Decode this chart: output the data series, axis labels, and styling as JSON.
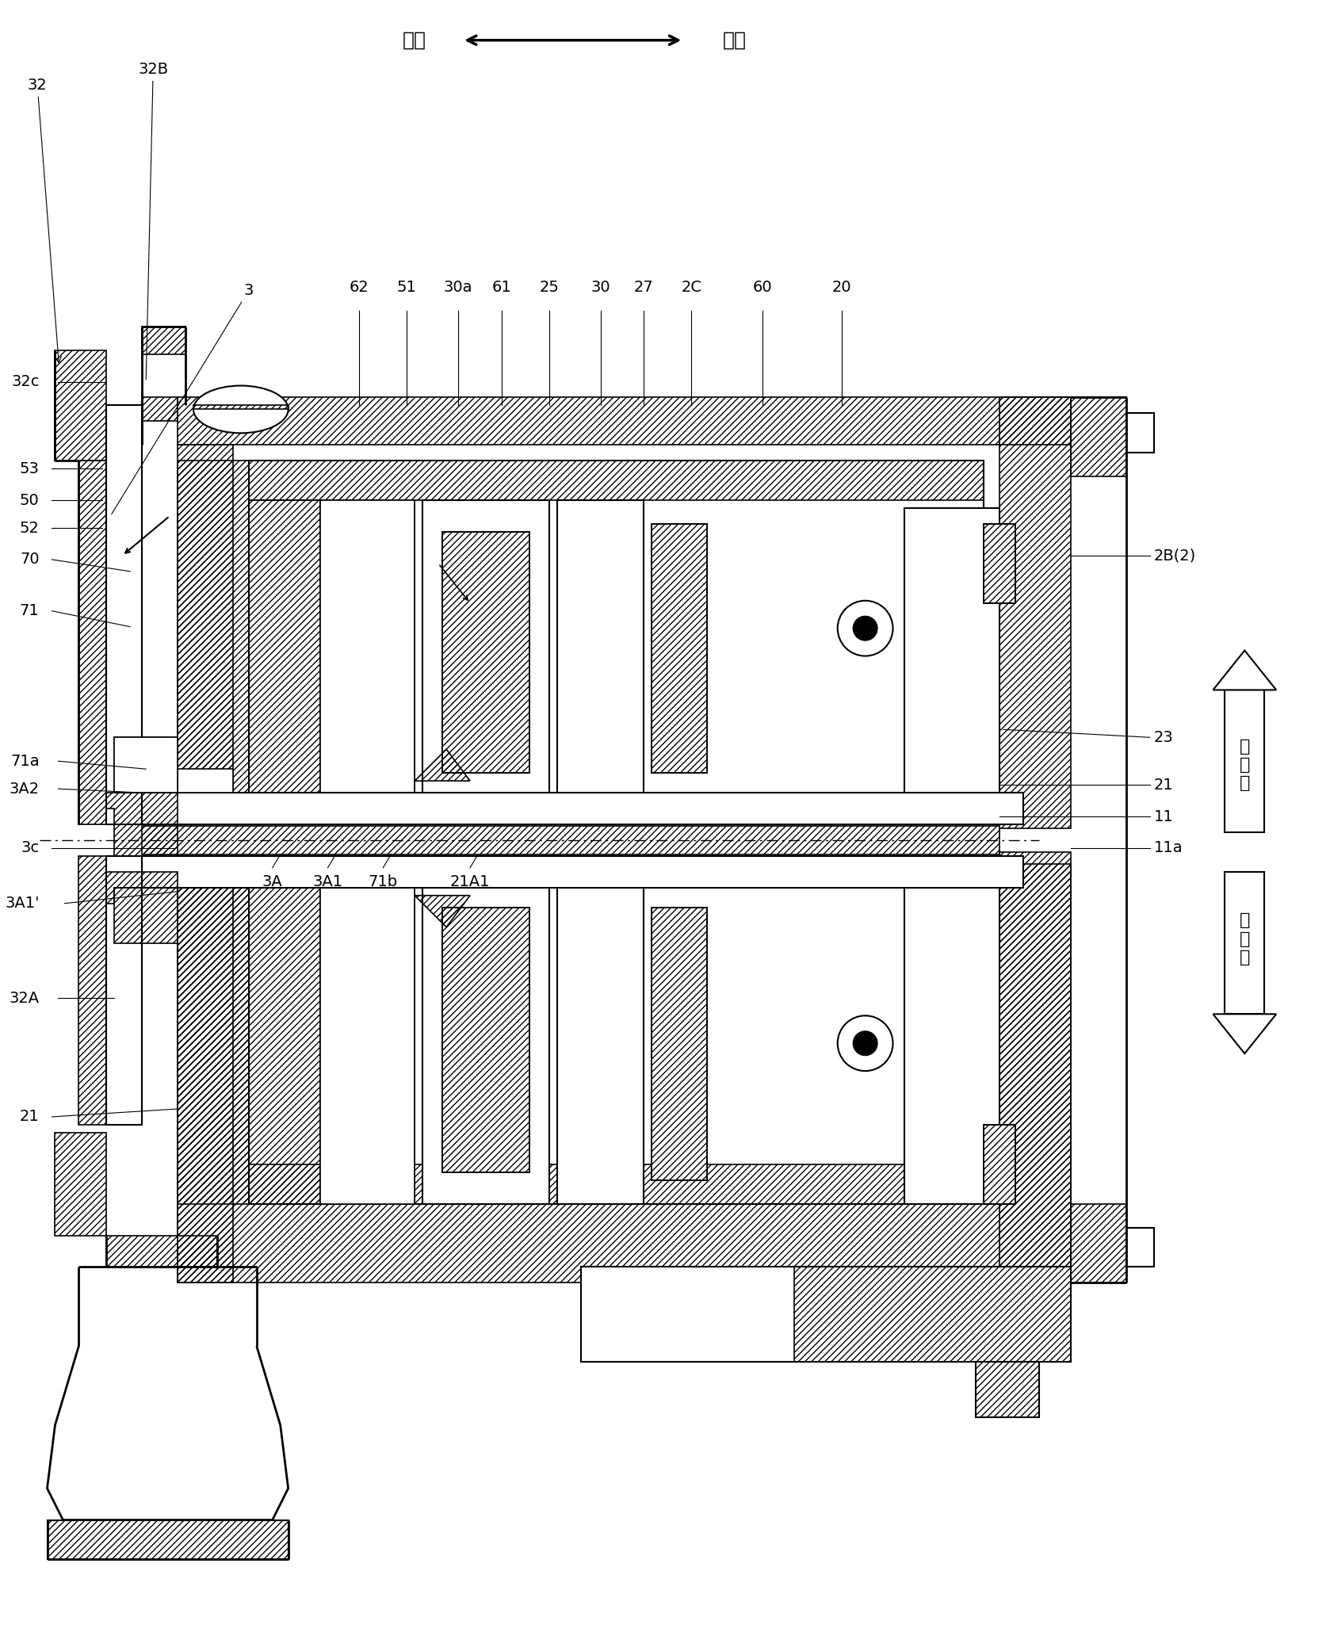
{
  "fig_width": 16.78,
  "fig_height": 20.69,
  "bg": "#ffffff",
  "top_label_left": "前方",
  "top_label_right": "后方",
  "arrow_up_text": "对\n策\n后",
  "arrow_dn_text": "对\n策\n前",
  "label_fs": 14,
  "title_fs": 18
}
